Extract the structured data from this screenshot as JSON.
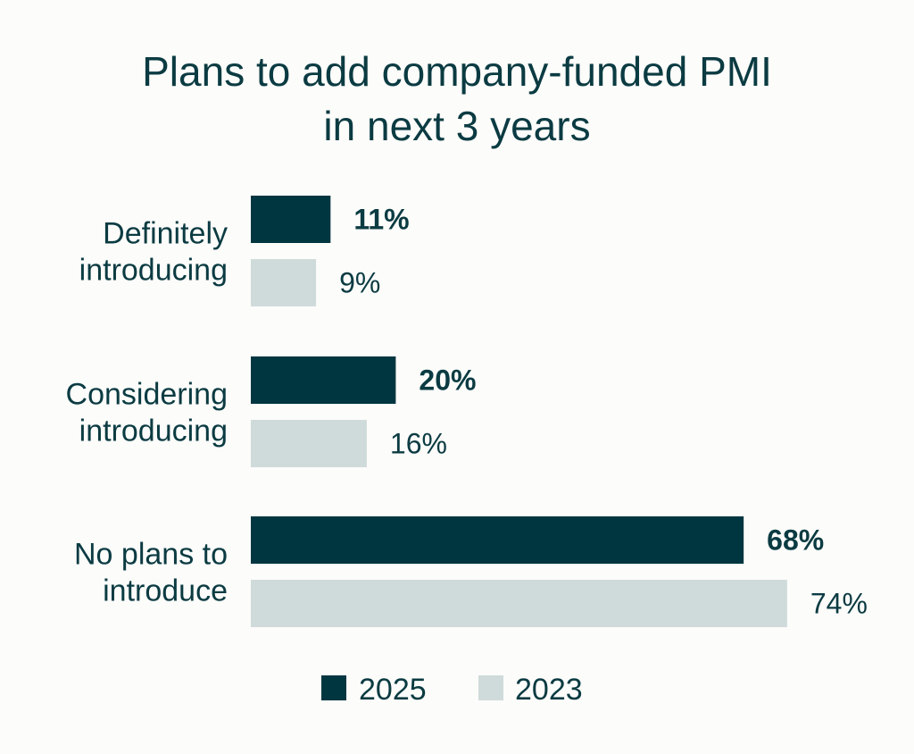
{
  "title_lines": [
    "Plans to add company-funded PMI",
    "in next 3 years"
  ],
  "chart_data": {
    "type": "bar",
    "orientation": "horizontal",
    "title": "Plans to add company-funded PMI in next 3 years",
    "categories": [
      [
        "Definitely",
        "introducing"
      ],
      [
        "Considering",
        "introducing"
      ],
      [
        "No plans to",
        "introduce"
      ]
    ],
    "series": [
      {
        "name": "2025",
        "values": [
          11,
          20,
          68
        ],
        "labels": [
          "11%",
          "20%",
          "68%"
        ],
        "color": "#003640",
        "bold": true
      },
      {
        "name": "2023",
        "values": [
          9,
          16,
          74
        ],
        "labels": [
          "9%",
          "16%",
          "74%"
        ],
        "color": "#cfdbda",
        "bold": false
      }
    ],
    "xlim": [
      0,
      80
    ],
    "grid": false,
    "legend_position": "bottom"
  }
}
